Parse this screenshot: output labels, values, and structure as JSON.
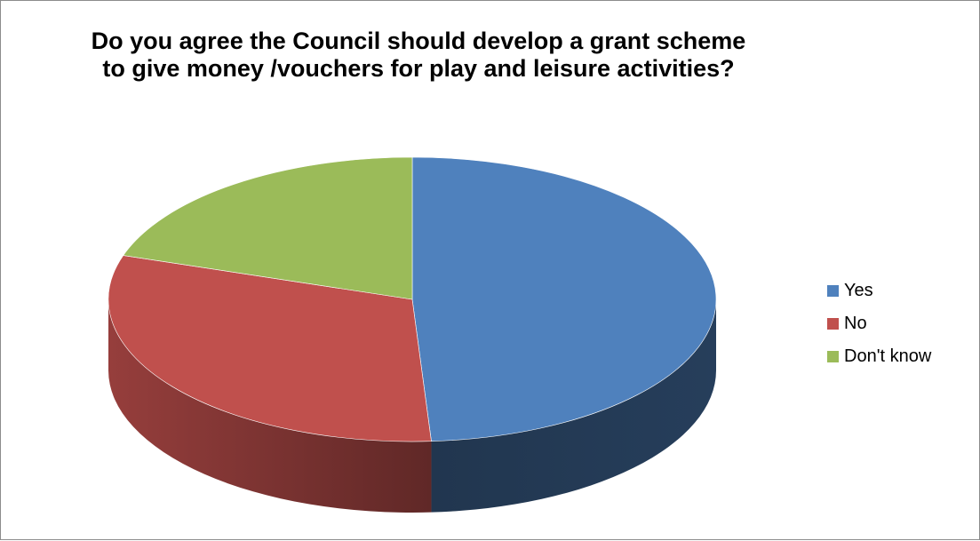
{
  "chart_data": {
    "type": "pie",
    "title": "Do you agree the Council should develop a grant scheme to give money /vouchers for play and leisure activities?",
    "categories": [
      "Yes",
      "No",
      "Don't know"
    ],
    "values": [
      49,
      31,
      20
    ],
    "colors": [
      "#4F81BD",
      "#C0504D",
      "#9BBB59"
    ],
    "legend_position": "right",
    "style": "3d-pie"
  }
}
